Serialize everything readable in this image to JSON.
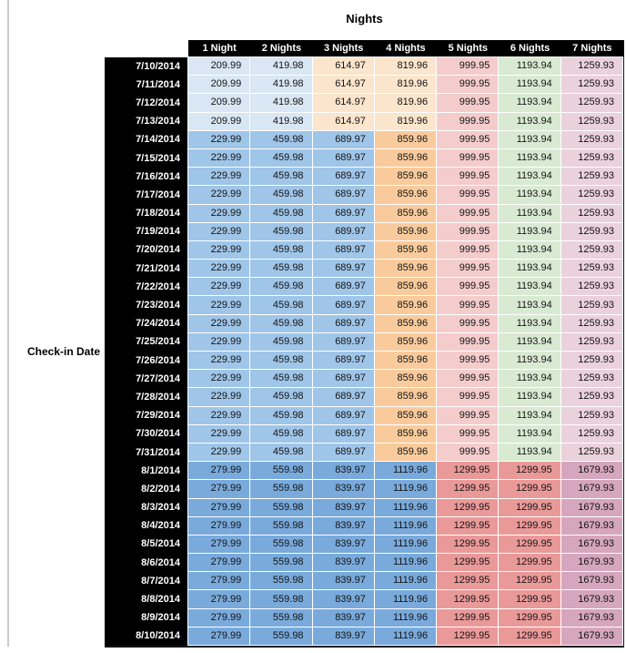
{
  "colors": {
    "header_bg": "#000000",
    "header_text": "#ffffff",
    "date_bg": "#000000",
    "date_text": "#ffffff",
    "left_rule": "#cbcbcb",
    "tiers": {
      "low": [
        "#d9e6f3",
        "#d9e6f3",
        "#fce5cd",
        "#fce5cd",
        "#f4cccc",
        "#d9ead3",
        "#ead1dc"
      ],
      "mid": [
        "#9fc5e8",
        "#9fc5e8",
        "#9fc5e8",
        "#f9cb9c",
        "#f4cccc",
        "#d9ead3",
        "#ead1dc"
      ],
      "high": [
        "#79aadb",
        "#79aadb",
        "#79aadb",
        "#79aadb",
        "#ea9999",
        "#ea9999",
        "#d5a6bd"
      ]
    }
  },
  "chart_data": {
    "type": "table",
    "title": "Nights",
    "row_axis_label": "Check-in Date",
    "columns": [
      "1 Night",
      "2 Nights",
      "3 Nights",
      "4 Nights",
      "5 Nights",
      "6 Nights",
      "7 Nights"
    ],
    "rows": [
      {
        "date": "7/10/2014",
        "tier": "low",
        "values": [
          "209.99",
          "419.98",
          "614.97",
          "819.96",
          "999.95",
          "1193.94",
          "1259.93"
        ]
      },
      {
        "date": "7/11/2014",
        "tier": "low",
        "values": [
          "209.99",
          "419.98",
          "614.97",
          "819.96",
          "999.95",
          "1193.94",
          "1259.93"
        ]
      },
      {
        "date": "7/12/2014",
        "tier": "low",
        "values": [
          "209.99",
          "419.98",
          "614.97",
          "819.96",
          "999.95",
          "1193.94",
          "1259.93"
        ]
      },
      {
        "date": "7/13/2014",
        "tier": "low",
        "values": [
          "209.99",
          "419.98",
          "614.97",
          "819.96",
          "999.95",
          "1193.94",
          "1259.93"
        ]
      },
      {
        "date": "7/14/2014",
        "tier": "mid",
        "values": [
          "229.99",
          "459.98",
          "689.97",
          "859.96",
          "999.95",
          "1193.94",
          "1259.93"
        ]
      },
      {
        "date": "7/15/2014",
        "tier": "mid",
        "values": [
          "229.99",
          "459.98",
          "689.97",
          "859.96",
          "999.95",
          "1193.94",
          "1259.93"
        ]
      },
      {
        "date": "7/16/2014",
        "tier": "mid",
        "values": [
          "229.99",
          "459.98",
          "689.97",
          "859.96",
          "999.95",
          "1193.94",
          "1259.93"
        ]
      },
      {
        "date": "7/17/2014",
        "tier": "mid",
        "values": [
          "229.99",
          "459.98",
          "689.97",
          "859.96",
          "999.95",
          "1193.94",
          "1259.93"
        ]
      },
      {
        "date": "7/18/2014",
        "tier": "mid",
        "values": [
          "229.99",
          "459.98",
          "689.97",
          "859.96",
          "999.95",
          "1193.94",
          "1259.93"
        ]
      },
      {
        "date": "7/19/2014",
        "tier": "mid",
        "values": [
          "229.99",
          "459.98",
          "689.97",
          "859.96",
          "999.95",
          "1193.94",
          "1259.93"
        ]
      },
      {
        "date": "7/20/2014",
        "tier": "mid",
        "values": [
          "229.99",
          "459.98",
          "689.97",
          "859.96",
          "999.95",
          "1193.94",
          "1259.93"
        ]
      },
      {
        "date": "7/21/2014",
        "tier": "mid",
        "values": [
          "229.99",
          "459.98",
          "689.97",
          "859.96",
          "999.95",
          "1193.94",
          "1259.93"
        ]
      },
      {
        "date": "7/22/2014",
        "tier": "mid",
        "values": [
          "229.99",
          "459.98",
          "689.97",
          "859.96",
          "999.95",
          "1193.94",
          "1259.93"
        ]
      },
      {
        "date": "7/23/2014",
        "tier": "mid",
        "values": [
          "229.99",
          "459.98",
          "689.97",
          "859.96",
          "999.95",
          "1193.94",
          "1259.93"
        ]
      },
      {
        "date": "7/24/2014",
        "tier": "mid",
        "values": [
          "229.99",
          "459.98",
          "689.97",
          "859.96",
          "999.95",
          "1193.94",
          "1259.93"
        ]
      },
      {
        "date": "7/25/2014",
        "tier": "mid",
        "values": [
          "229.99",
          "459.98",
          "689.97",
          "859.96",
          "999.95",
          "1193.94",
          "1259.93"
        ]
      },
      {
        "date": "7/26/2014",
        "tier": "mid",
        "values": [
          "229.99",
          "459.98",
          "689.97",
          "859.96",
          "999.95",
          "1193.94",
          "1259.93"
        ]
      },
      {
        "date": "7/27/2014",
        "tier": "mid",
        "values": [
          "229.99",
          "459.98",
          "689.97",
          "859.96",
          "999.95",
          "1193.94",
          "1259.93"
        ]
      },
      {
        "date": "7/28/2014",
        "tier": "mid",
        "values": [
          "229.99",
          "459.98",
          "689.97",
          "859.96",
          "999.95",
          "1193.94",
          "1259.93"
        ]
      },
      {
        "date": "7/29/2014",
        "tier": "mid",
        "values": [
          "229.99",
          "459.98",
          "689.97",
          "859.96",
          "999.95",
          "1193.94",
          "1259.93"
        ]
      },
      {
        "date": "7/30/2014",
        "tier": "mid",
        "values": [
          "229.99",
          "459.98",
          "689.97",
          "859.96",
          "999.95",
          "1193.94",
          "1259.93"
        ]
      },
      {
        "date": "7/31/2014",
        "tier": "mid",
        "values": [
          "229.99",
          "459.98",
          "689.97",
          "859.96",
          "999.95",
          "1193.94",
          "1259.93"
        ]
      },
      {
        "date": "8/1/2014",
        "tier": "high",
        "values": [
          "279.99",
          "559.98",
          "839.97",
          "1119.96",
          "1299.95",
          "1299.95",
          "1679.93"
        ]
      },
      {
        "date": "8/2/2014",
        "tier": "high",
        "values": [
          "279.99",
          "559.98",
          "839.97",
          "1119.96",
          "1299.95",
          "1299.95",
          "1679.93"
        ]
      },
      {
        "date": "8/3/2014",
        "tier": "high",
        "values": [
          "279.99",
          "559.98",
          "839.97",
          "1119.96",
          "1299.95",
          "1299.95",
          "1679.93"
        ]
      },
      {
        "date": "8/4/2014",
        "tier": "high",
        "values": [
          "279.99",
          "559.98",
          "839.97",
          "1119.96",
          "1299.95",
          "1299.95",
          "1679.93"
        ]
      },
      {
        "date": "8/5/2014",
        "tier": "high",
        "values": [
          "279.99",
          "559.98",
          "839.97",
          "1119.96",
          "1299.95",
          "1299.95",
          "1679.93"
        ]
      },
      {
        "date": "8/6/2014",
        "tier": "high",
        "values": [
          "279.99",
          "559.98",
          "839.97",
          "1119.96",
          "1299.95",
          "1299.95",
          "1679.93"
        ]
      },
      {
        "date": "8/7/2014",
        "tier": "high",
        "values": [
          "279.99",
          "559.98",
          "839.97",
          "1119.96",
          "1299.95",
          "1299.95",
          "1679.93"
        ]
      },
      {
        "date": "8/8/2014",
        "tier": "high",
        "values": [
          "279.99",
          "559.98",
          "839.97",
          "1119.96",
          "1299.95",
          "1299.95",
          "1679.93"
        ]
      },
      {
        "date": "8/9/2014",
        "tier": "high",
        "values": [
          "279.99",
          "559.98",
          "839.97",
          "1119.96",
          "1299.95",
          "1299.95",
          "1679.93"
        ]
      },
      {
        "date": "8/10/2014",
        "tier": "high",
        "values": [
          "279.99",
          "559.98",
          "839.97",
          "1119.96",
          "1299.95",
          "1299.95",
          "1679.93"
        ]
      }
    ]
  }
}
